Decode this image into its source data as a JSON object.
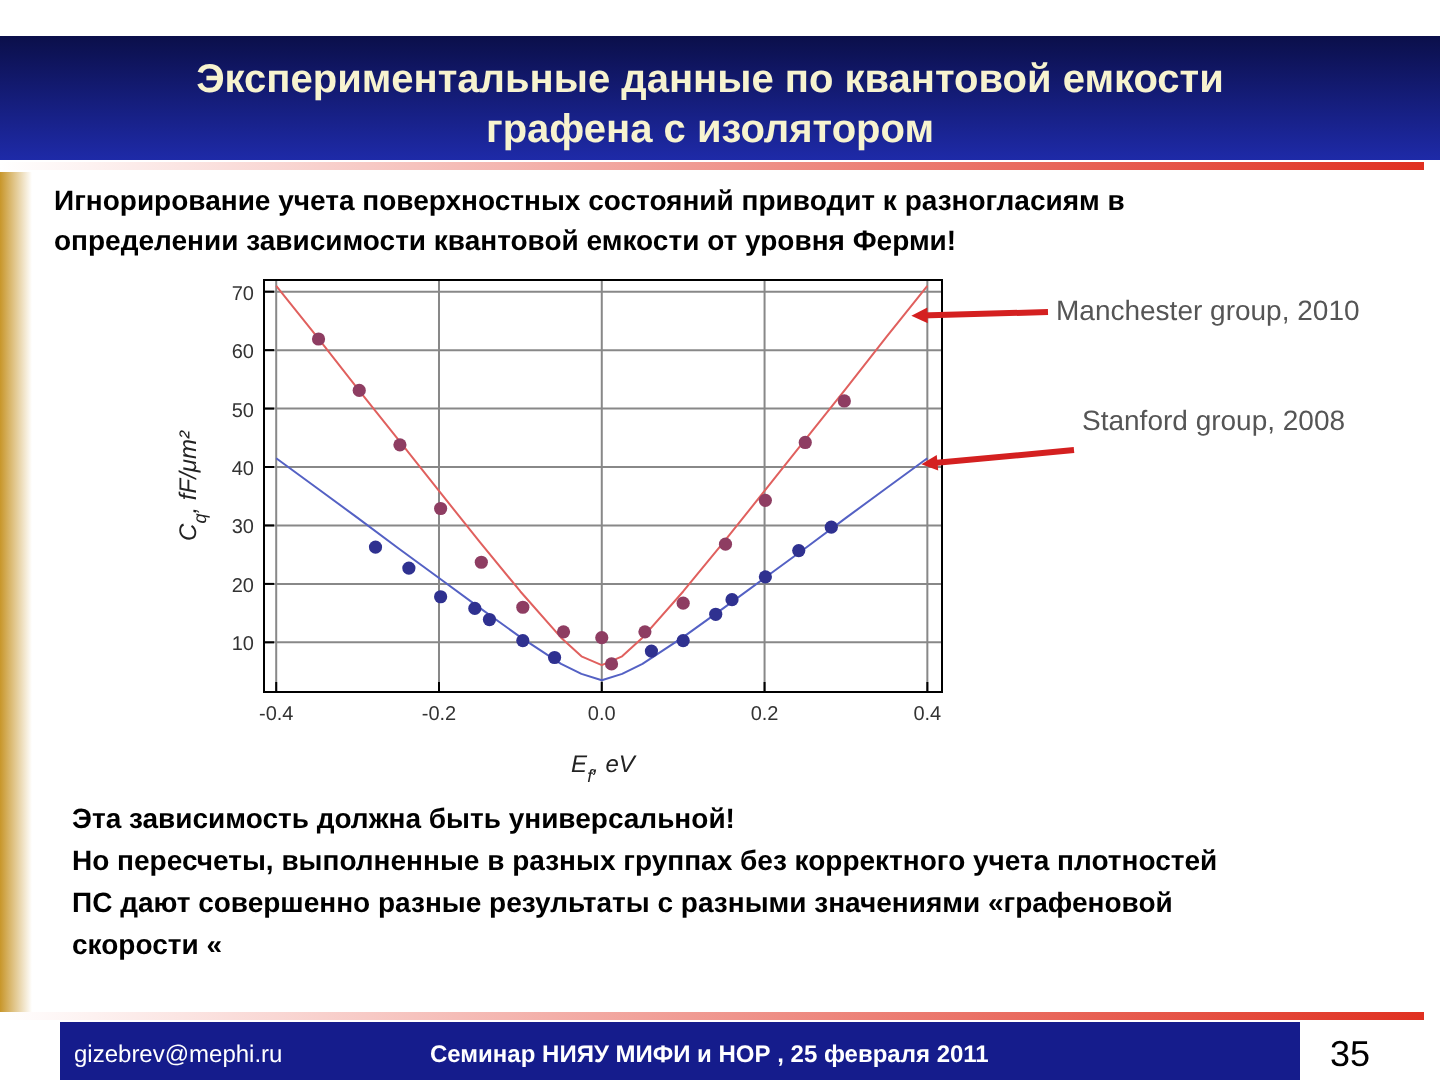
{
  "chart_data": {
    "type": "scatter",
    "title": "Экспериментальные данные по квантовой емкости графена с изолятором",
    "subtitle": "Игнорирование учета поверхностных состояний  приводит к  разногласиям в определении зависимости  квантовой емкости от уровня Ферми!",
    "xlabel": "E$_{f}$, eV",
    "ylabel": "C$_{q}$, fF/μm²",
    "xlim": [
      -0.415,
      0.418
    ],
    "ylim": [
      1.5,
      72
    ],
    "xticks": [
      {
        "value": -0.4,
        "label": "-0.4"
      },
      {
        "value": -0.2,
        "label": "-0.2"
      },
      {
        "value": 0,
        "label": "0.0"
      },
      {
        "value": 0.2,
        "label": "0.2"
      },
      {
        "value": 0.4,
        "label": "0.4"
      }
    ],
    "yticks": [
      10,
      20,
      30,
      40,
      50,
      60,
      70
    ],
    "grid": true,
    "marker": "circle",
    "series": [
      {
        "color": "#8e3d62",
        "x": [
          -0.348,
          -0.298,
          -0.248,
          -0.198,
          -0.148,
          -0.097,
          -0.047,
          0.0,
          0.012,
          0.053,
          0.1,
          0.152,
          0.201,
          0.25,
          0.298
        ],
        "values": [
          61.9,
          53.1,
          43.8,
          32.9,
          23.7,
          16.0,
          11.8,
          10.8,
          6.3,
          11.8,
          16.7,
          26.8,
          34.3,
          44.2,
          51.3
        ]
      },
      {
        "color": "#2f3190",
        "x": [
          -0.278,
          -0.237,
          -0.198,
          -0.156,
          -0.138,
          -0.097,
          -0.058,
          0.061,
          0.1,
          0.14,
          0.16,
          0.201,
          0.242,
          0.282
        ],
        "values": [
          26.3,
          22.7,
          17.8,
          15.8,
          13.9,
          10.3,
          7.4,
          8.5,
          10.3,
          14.8,
          17.3,
          21.2,
          25.7,
          29.7
        ]
      },
      {
        "type": "line",
        "name": "Manchester group,  2010",
        "color": "#e0605e",
        "marker": "none",
        "x": [
          -0.4,
          -0.35,
          -0.3,
          -0.25,
          -0.2,
          -0.15,
          -0.1,
          -0.05,
          -0.025,
          0,
          0.025,
          0.05,
          0.1,
          0.15,
          0.2,
          0.25,
          0.3,
          0.35,
          0.4
        ],
        "values": [
          71,
          62.3,
          53.4,
          44.7,
          35.9,
          27.2,
          18.7,
          10.8,
          7.6,
          6.1,
          7.6,
          10.8,
          18.7,
          27.2,
          35.9,
          44.7,
          53.4,
          62.3,
          71
        ]
      },
      {
        "type": "line",
        "name": "Stanford  group, 2008",
        "color": "#5461c4",
        "marker": "none",
        "x": [
          -0.4,
          -0.35,
          -0.3,
          -0.25,
          -0.2,
          -0.15,
          -0.1,
          -0.05,
          -0.025,
          0,
          0.025,
          0.05,
          0.1,
          0.15,
          0.2,
          0.25,
          0.3,
          0.35,
          0.4
        ],
        "values": [
          41.5,
          36.4,
          31.3,
          26.1,
          21.0,
          15.9,
          10.9,
          6.3,
          4.6,
          3.5,
          4.6,
          6.3,
          10.9,
          15.9,
          21.0,
          26.1,
          31.3,
          36.4,
          41.5
        ]
      }
    ],
    "annotations": [
      "Эта зависимость должна быть универсальной!",
      "Но пересчеты, выполненные в разных группах без корректного учета плотностей",
      "ПС дают совершенно разные результаты с разными значениями «графеновой",
      "скорости «",
      "gizebrev@mephi.ru",
      "Семинар  НИЯУ МИФИ и НОР ,    25 февраля  2011",
      "35"
    ]
  }
}
